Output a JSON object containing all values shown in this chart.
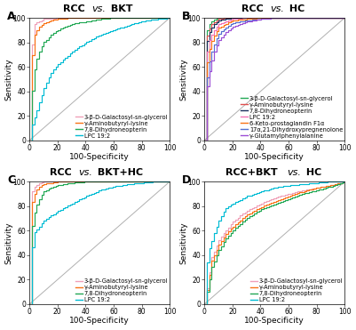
{
  "panels": {
    "A": {
      "title_parts": [
        "RCC ",
        "vs.",
        " BKT"
      ],
      "curves": [
        {
          "label": "3-β-D-Galactosyl-sn-glycerol",
          "color": "#f0a0b8",
          "pts_x": [
            0,
            2,
            4,
            6,
            8,
            10,
            15,
            20,
            30,
            40,
            50,
            60,
            70,
            80,
            90,
            100
          ],
          "pts_y": [
            0,
            92,
            96,
            97,
            98,
            99,
            99,
            100,
            100,
            100,
            100,
            100,
            100,
            100,
            100,
            100
          ]
        },
        {
          "label": "γ-Aminobutyryl-lysine",
          "color": "#f97316",
          "pts_x": [
            0,
            2,
            4,
            6,
            8,
            10,
            15,
            20,
            30,
            40,
            50,
            60,
            70,
            80,
            90,
            100
          ],
          "pts_y": [
            0,
            82,
            88,
            92,
            94,
            96,
            98,
            99,
            100,
            100,
            100,
            100,
            100,
            100,
            100,
            100
          ]
        },
        {
          "label": "7,8-Dihydroneopterin",
          "color": "#22a855",
          "pts_x": [
            0,
            2,
            4,
            6,
            8,
            10,
            15,
            20,
            30,
            40,
            50,
            60,
            70,
            80,
            90,
            100
          ],
          "pts_y": [
            0,
            48,
            62,
            70,
            76,
            80,
            86,
            90,
            95,
            97,
            99,
            100,
            100,
            100,
            100,
            100
          ]
        },
        {
          "label": "LPC 19:2",
          "color": "#00bcd4",
          "pts_x": [
            0,
            2,
            4,
            6,
            8,
            10,
            15,
            20,
            30,
            40,
            50,
            60,
            70,
            80,
            90,
            100
          ],
          "pts_y": [
            0,
            15,
            20,
            28,
            35,
            42,
            55,
            62,
            72,
            80,
            86,
            90,
            94,
            97,
            99,
            100
          ]
        }
      ]
    },
    "B": {
      "title_parts": [
        "RCC ",
        "vs.",
        " HC"
      ],
      "curves": [
        {
          "label": "3-β-D-Galactosyl-sn-glycerol",
          "color": "#22a855",
          "pts_x": [
            0,
            1,
            2,
            4,
            6,
            8,
            10,
            15,
            20,
            30,
            40,
            50,
            60,
            70,
            80,
            90,
            100
          ],
          "pts_y": [
            0,
            85,
            92,
            96,
            98,
            99,
            99,
            100,
            100,
            100,
            100,
            100,
            100,
            100,
            100,
            100,
            100
          ]
        },
        {
          "label": "γ-Aminobutyryl-lysine",
          "color": "#e05050",
          "pts_x": [
            0,
            1,
            2,
            4,
            6,
            8,
            10,
            15,
            20,
            30,
            40,
            50,
            60,
            70,
            80,
            90,
            100
          ],
          "pts_y": [
            0,
            80,
            88,
            93,
            96,
            98,
            99,
            100,
            100,
            100,
            100,
            100,
            100,
            100,
            100,
            100,
            100
          ]
        },
        {
          "label": "7,8-Dihydroneopterin",
          "color": "#1a2f5e",
          "pts_x": [
            0,
            1,
            2,
            4,
            6,
            8,
            10,
            15,
            20,
            30,
            40,
            50,
            60,
            70,
            80,
            90,
            100
          ],
          "pts_y": [
            0,
            75,
            84,
            90,
            94,
            96,
            98,
            99,
            100,
            100,
            100,
            100,
            100,
            100,
            100,
            100,
            100
          ]
        },
        {
          "label": "LPC 19:2",
          "color": "#f472b6",
          "pts_x": [
            0,
            1,
            2,
            4,
            6,
            8,
            10,
            15,
            20,
            30,
            40,
            50,
            60,
            70,
            80,
            90,
            100
          ],
          "pts_y": [
            0,
            65,
            76,
            84,
            88,
            92,
            95,
            97,
            99,
            100,
            100,
            100,
            100,
            100,
            100,
            100,
            100
          ]
        },
        {
          "label": "6-Keto-prostaglandin F1α",
          "color": "#f97316",
          "pts_x": [
            0,
            1,
            2,
            4,
            6,
            8,
            10,
            15,
            20,
            30,
            40,
            50,
            60,
            70,
            80,
            90,
            100
          ],
          "pts_y": [
            0,
            55,
            68,
            78,
            84,
            88,
            92,
            95,
            98,
            99,
            100,
            100,
            100,
            100,
            100,
            100,
            100
          ]
        },
        {
          "label": "17α,21-Dihydroxypregnenolone",
          "color": "#5570d0",
          "pts_x": [
            0,
            1,
            2,
            4,
            6,
            8,
            10,
            15,
            20,
            30,
            40,
            50,
            60,
            70,
            80,
            90,
            100
          ],
          "pts_y": [
            0,
            42,
            56,
            68,
            76,
            82,
            87,
            92,
            96,
            98,
            99,
            100,
            100,
            100,
            100,
            100,
            100
          ]
        },
        {
          "label": "γ-Glutamylphenylalanine",
          "color": "#9c4ed6",
          "pts_x": [
            0,
            1,
            2,
            4,
            6,
            8,
            10,
            15,
            20,
            30,
            40,
            50,
            60,
            70,
            80,
            90,
            100
          ],
          "pts_y": [
            0,
            35,
            48,
            60,
            70,
            76,
            82,
            88,
            93,
            97,
            99,
            100,
            100,
            100,
            100,
            100,
            100
          ]
        }
      ]
    },
    "C": {
      "title_parts": [
        "RCC ",
        "vs.",
        " BKT+HC"
      ],
      "curves": [
        {
          "label": "3-β-D-Galactosyl-sn-glycerol",
          "color": "#f0a0b8",
          "pts_x": [
            0,
            1,
            2,
            4,
            6,
            8,
            10,
            15,
            20,
            30,
            40,
            50,
            60,
            70,
            80,
            90,
            100
          ],
          "pts_y": [
            0,
            88,
            94,
            97,
            98,
            99,
            100,
            100,
            100,
            100,
            100,
            100,
            100,
            100,
            100,
            100,
            100
          ]
        },
        {
          "label": "γ-Aminobutyryl-lysine",
          "color": "#f97316",
          "pts_x": [
            0,
            1,
            2,
            4,
            6,
            8,
            10,
            15,
            20,
            30,
            40,
            50,
            60,
            70,
            80,
            90,
            100
          ],
          "pts_y": [
            0,
            78,
            86,
            92,
            95,
            97,
            98,
            99,
            100,
            100,
            100,
            100,
            100,
            100,
            100,
            100,
            100
          ]
        },
        {
          "label": "7,8-Dihydroneopterin",
          "color": "#22a855",
          "pts_x": [
            0,
            1,
            2,
            4,
            6,
            8,
            10,
            15,
            20,
            30,
            40,
            50,
            60,
            70,
            80,
            90,
            100
          ],
          "pts_y": [
            0,
            55,
            68,
            78,
            84,
            88,
            92,
            95,
            97,
            99,
            100,
            100,
            100,
            100,
            100,
            100,
            100
          ]
        },
        {
          "label": "LPC 19:2",
          "color": "#00bcd4",
          "pts_x": [
            0,
            2,
            4,
            6,
            8,
            10,
            15,
            20,
            30,
            40,
            50,
            60,
            70,
            80,
            90,
            100
          ],
          "pts_y": [
            0,
            55,
            60,
            62,
            65,
            68,
            72,
            76,
            82,
            88,
            93,
            96,
            98,
            99,
            100,
            100
          ]
        }
      ]
    },
    "D": {
      "title_parts": [
        "RCC+BKT ",
        "vs.",
        " HC"
      ],
      "curves": [
        {
          "label": "3-β-D-Galactosyl-sn-glycerol",
          "color": "#f0a0b8",
          "pts_x": [
            0,
            5,
            10,
            15,
            20,
            25,
            30,
            40,
            50,
            60,
            70,
            80,
            90,
            100
          ],
          "pts_y": [
            0,
            38,
            52,
            60,
            67,
            72,
            76,
            82,
            87,
            90,
            93,
            95,
            97,
            100
          ]
        },
        {
          "label": "γ-Aminobutyryl-lysine",
          "color": "#f97316",
          "pts_x": [
            0,
            5,
            10,
            15,
            20,
            25,
            30,
            40,
            50,
            60,
            70,
            80,
            90,
            100
          ],
          "pts_y": [
            0,
            35,
            48,
            57,
            63,
            68,
            73,
            79,
            84,
            88,
            92,
            95,
            97,
            100
          ]
        },
        {
          "label": "7,8-Dihydroneopterin",
          "color": "#22a855",
          "pts_x": [
            0,
            5,
            10,
            15,
            20,
            25,
            30,
            40,
            50,
            60,
            70,
            80,
            90,
            100
          ],
          "pts_y": [
            0,
            30,
            44,
            53,
            60,
            65,
            70,
            77,
            82,
            86,
            90,
            93,
            96,
            100
          ]
        },
        {
          "label": "LPC 19:2",
          "color": "#00bcd4",
          "pts_x": [
            0,
            2,
            4,
            6,
            8,
            10,
            15,
            20,
            30,
            40,
            50,
            60,
            70,
            80,
            90,
            100
          ],
          "pts_y": [
            0,
            40,
            48,
            55,
            62,
            68,
            78,
            82,
            88,
            92,
            95,
            97,
            98,
            99,
            100,
            100
          ]
        }
      ]
    }
  },
  "xlabel": "100-Specificity",
  "ylabel": "Sensitivity",
  "xlim": [
    0,
    100
  ],
  "ylim": [
    0,
    100
  ],
  "xticks": [
    0,
    20,
    40,
    60,
    80,
    100
  ],
  "yticks": [
    0,
    20,
    40,
    60,
    80,
    100
  ],
  "diagonal_color": "#b0b0b0",
  "legend_fontsize": 4.8,
  "axis_label_fontsize": 6.5,
  "tick_fontsize": 5.5,
  "panel_label_fontsize": 9,
  "title_fontsize": 8,
  "background_color": "#ffffff"
}
